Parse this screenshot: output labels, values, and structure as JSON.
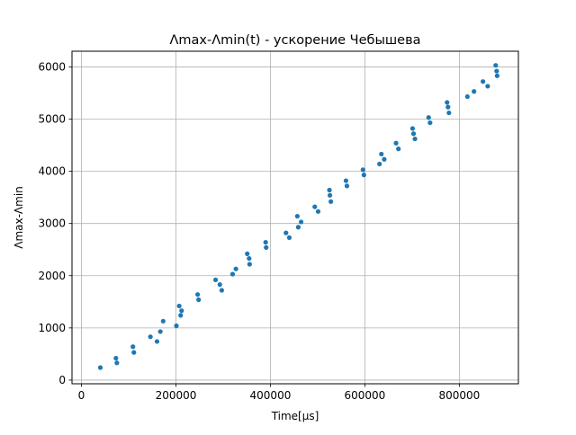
{
  "chart_data": {
    "type": "scatter",
    "title": "Λmax-Λmin(t) - ускорение Чебышева",
    "xlabel": "Time[μs]",
    "ylabel": "Λmax-Λmin",
    "xlim": [
      -20000,
      925000
    ],
    "ylim": [
      -70,
      6300
    ],
    "x_ticks": [
      0,
      200000,
      400000,
      600000,
      800000
    ],
    "x_tick_labels": [
      "0",
      "200000",
      "400000",
      "600000",
      "800000"
    ],
    "y_ticks": [
      0,
      1000,
      2000,
      3000,
      4000,
      5000,
      6000
    ],
    "y_tick_labels": [
      "0",
      "1000",
      "2000",
      "3000",
      "4000",
      "5000",
      "6000"
    ],
    "grid": true,
    "marker_color": "#1f77b4",
    "series": [
      {
        "x": [
          40000,
          73000,
          75000,
          109000,
          111000,
          146000,
          160000,
          167000,
          173000,
          201000,
          207000,
          210000,
          212000,
          246000,
          248000,
          284000,
          293000,
          297000,
          320000,
          327000,
          351000,
          355000,
          356000,
          390000,
          391000,
          433000,
          440000,
          457000,
          459000,
          465000,
          494000,
          501000,
          525000,
          526000,
          528000,
          560000,
          562000,
          596000,
          598000,
          631000,
          635000,
          641000,
          666000,
          671000,
          701000,
          703000,
          706000,
          735000,
          738000,
          774000,
          776000,
          778000,
          817000,
          831000,
          850000,
          860000,
          877000,
          879000,
          880000
        ],
        "y": [
          240,
          420,
          330,
          640,
          530,
          830,
          740,
          930,
          1130,
          1040,
          1420,
          1240,
          1330,
          1640,
          1540,
          1920,
          1830,
          1720,
          2030,
          2130,
          2420,
          2330,
          2220,
          2640,
          2540,
          2820,
          2730,
          3140,
          2930,
          3030,
          3320,
          3230,
          3640,
          3540,
          3420,
          3820,
          3720,
          4030,
          3930,
          4140,
          4330,
          4230,
          4540,
          4430,
          4820,
          4720,
          4620,
          5030,
          4930,
          5320,
          5230,
          5120,
          5430,
          5530,
          5720,
          5630,
          6030,
          5920,
          5830
        ]
      }
    ]
  }
}
